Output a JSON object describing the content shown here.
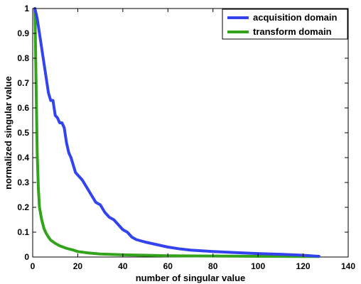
{
  "chart_data": {
    "type": "line",
    "title": "",
    "xlabel": "number of singular value",
    "ylabel": "normalized singular value",
    "xlim": [
      0,
      140
    ],
    "ylim": [
      0,
      1
    ],
    "xticks": [
      0,
      20,
      40,
      60,
      80,
      100,
      120,
      140
    ],
    "yticks": [
      0,
      0.1,
      0.2,
      0.3,
      0.4,
      0.5,
      0.6,
      0.7,
      0.8,
      0.9,
      1
    ],
    "xtick_labels": [
      "0",
      "20",
      "40",
      "60",
      "80",
      "100",
      "120",
      "140"
    ],
    "ytick_labels": [
      "0",
      "0.1",
      "0.2",
      "0.3",
      "0.4",
      "0.5",
      "0.6",
      "0.7",
      "0.8",
      "0.9",
      "1"
    ],
    "grid": false,
    "legend_position": "top-right",
    "series": [
      {
        "name": "acquisition domain",
        "color": "#3344ee",
        "x": [
          1,
          2,
          3,
          4,
          5,
          6,
          7,
          8,
          9,
          10,
          11,
          12,
          13,
          14,
          15,
          16,
          17,
          18,
          19,
          20,
          22,
          24,
          26,
          28,
          30,
          32,
          34,
          36,
          38,
          40,
          42,
          44,
          46,
          50,
          55,
          60,
          65,
          70,
          80,
          90,
          100,
          110,
          120,
          125,
          127
        ],
        "y": [
          1.0,
          0.96,
          0.9,
          0.84,
          0.78,
          0.72,
          0.66,
          0.63,
          0.63,
          0.57,
          0.56,
          0.54,
          0.54,
          0.52,
          0.46,
          0.42,
          0.4,
          0.37,
          0.34,
          0.33,
          0.31,
          0.28,
          0.25,
          0.22,
          0.21,
          0.18,
          0.16,
          0.15,
          0.13,
          0.11,
          0.1,
          0.08,
          0.07,
          0.06,
          0.05,
          0.04,
          0.033,
          0.028,
          0.022,
          0.018,
          0.014,
          0.011,
          0.007,
          0.004,
          0.003
        ]
      },
      {
        "name": "transform domain",
        "color": "#33a31c",
        "x": [
          1,
          1.5,
          2,
          2.5,
          3,
          4,
          5,
          6,
          7,
          8,
          10,
          12,
          15,
          18,
          20,
          25,
          30,
          40,
          50,
          60,
          80,
          100,
          120,
          127
        ],
        "y": [
          1.0,
          0.7,
          0.42,
          0.28,
          0.2,
          0.15,
          0.115,
          0.095,
          0.08,
          0.068,
          0.055,
          0.045,
          0.035,
          0.028,
          0.022,
          0.016,
          0.012,
          0.009,
          0.007,
          0.005,
          0.004,
          0.003,
          0.002,
          0.002
        ]
      }
    ]
  }
}
